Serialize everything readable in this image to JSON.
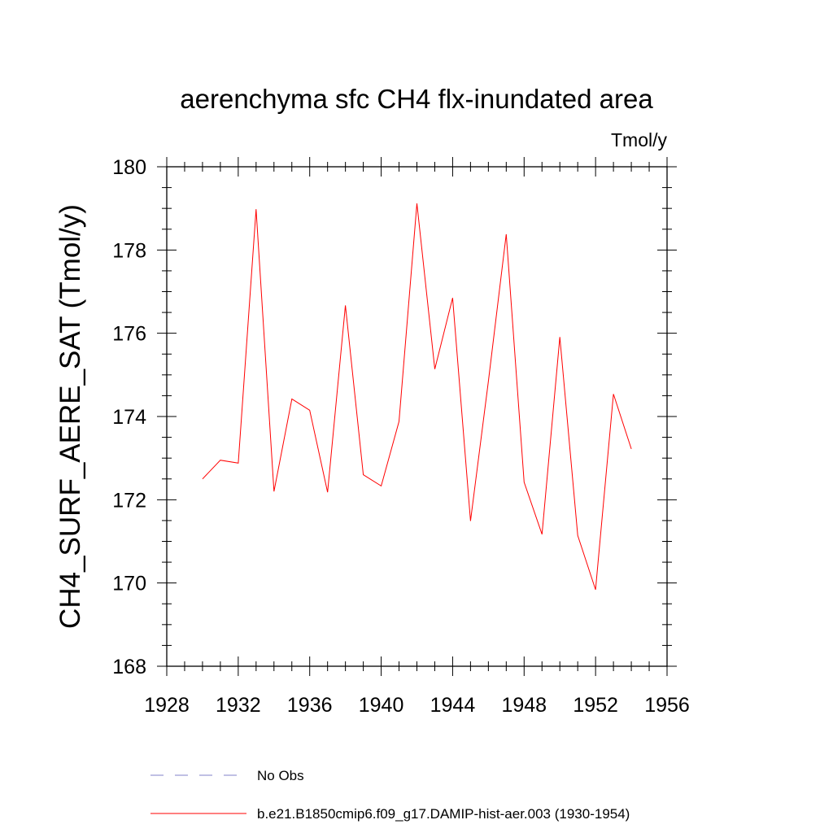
{
  "chart_data": {
    "type": "line",
    "title": "aerenchyma sfc CH4 flx-inundated area",
    "units": "Tmol/y",
    "xlabel": "",
    "ylabel": "CH4_SURF_AERE_SAT  (Tmol/y)",
    "xlim": [
      1928,
      1956
    ],
    "ylim": [
      168,
      180
    ],
    "x_ticks": [
      1928,
      1932,
      1936,
      1940,
      1944,
      1948,
      1952,
      1956
    ],
    "y_ticks": [
      168,
      170,
      172,
      174,
      176,
      178,
      180
    ],
    "grid": false,
    "legend_position": "bottom-left",
    "series": [
      {
        "name": "b.e21.B1850cmip6.f09_g17.DAMIP-hist-aer.003 (1930-1954)",
        "color": "#ff0000",
        "style": "solid",
        "x": [
          1930,
          1931,
          1932,
          1933,
          1934,
          1935,
          1936,
          1937,
          1938,
          1939,
          1940,
          1941,
          1942,
          1943,
          1944,
          1945,
          1946,
          1947,
          1948,
          1949,
          1950,
          1951,
          1952,
          1953,
          1954
        ],
        "y": [
          172.5,
          172.95,
          172.88,
          178.98,
          172.2,
          174.42,
          174.15,
          172.18,
          176.67,
          172.6,
          172.33,
          173.88,
          179.12,
          175.14,
          176.85,
          171.49,
          174.85,
          178.38,
          172.42,
          171.17,
          175.91,
          171.14,
          169.84,
          174.54,
          173.22
        ]
      }
    ],
    "legend": [
      {
        "label": "No Obs",
        "color": "#8080c8",
        "style": "dashed"
      },
      {
        "label": "b.e21.B1850cmip6.f09_g17.DAMIP-hist-aer.003 (1930-1954)",
        "color": "#ff0000",
        "style": "solid"
      }
    ]
  }
}
